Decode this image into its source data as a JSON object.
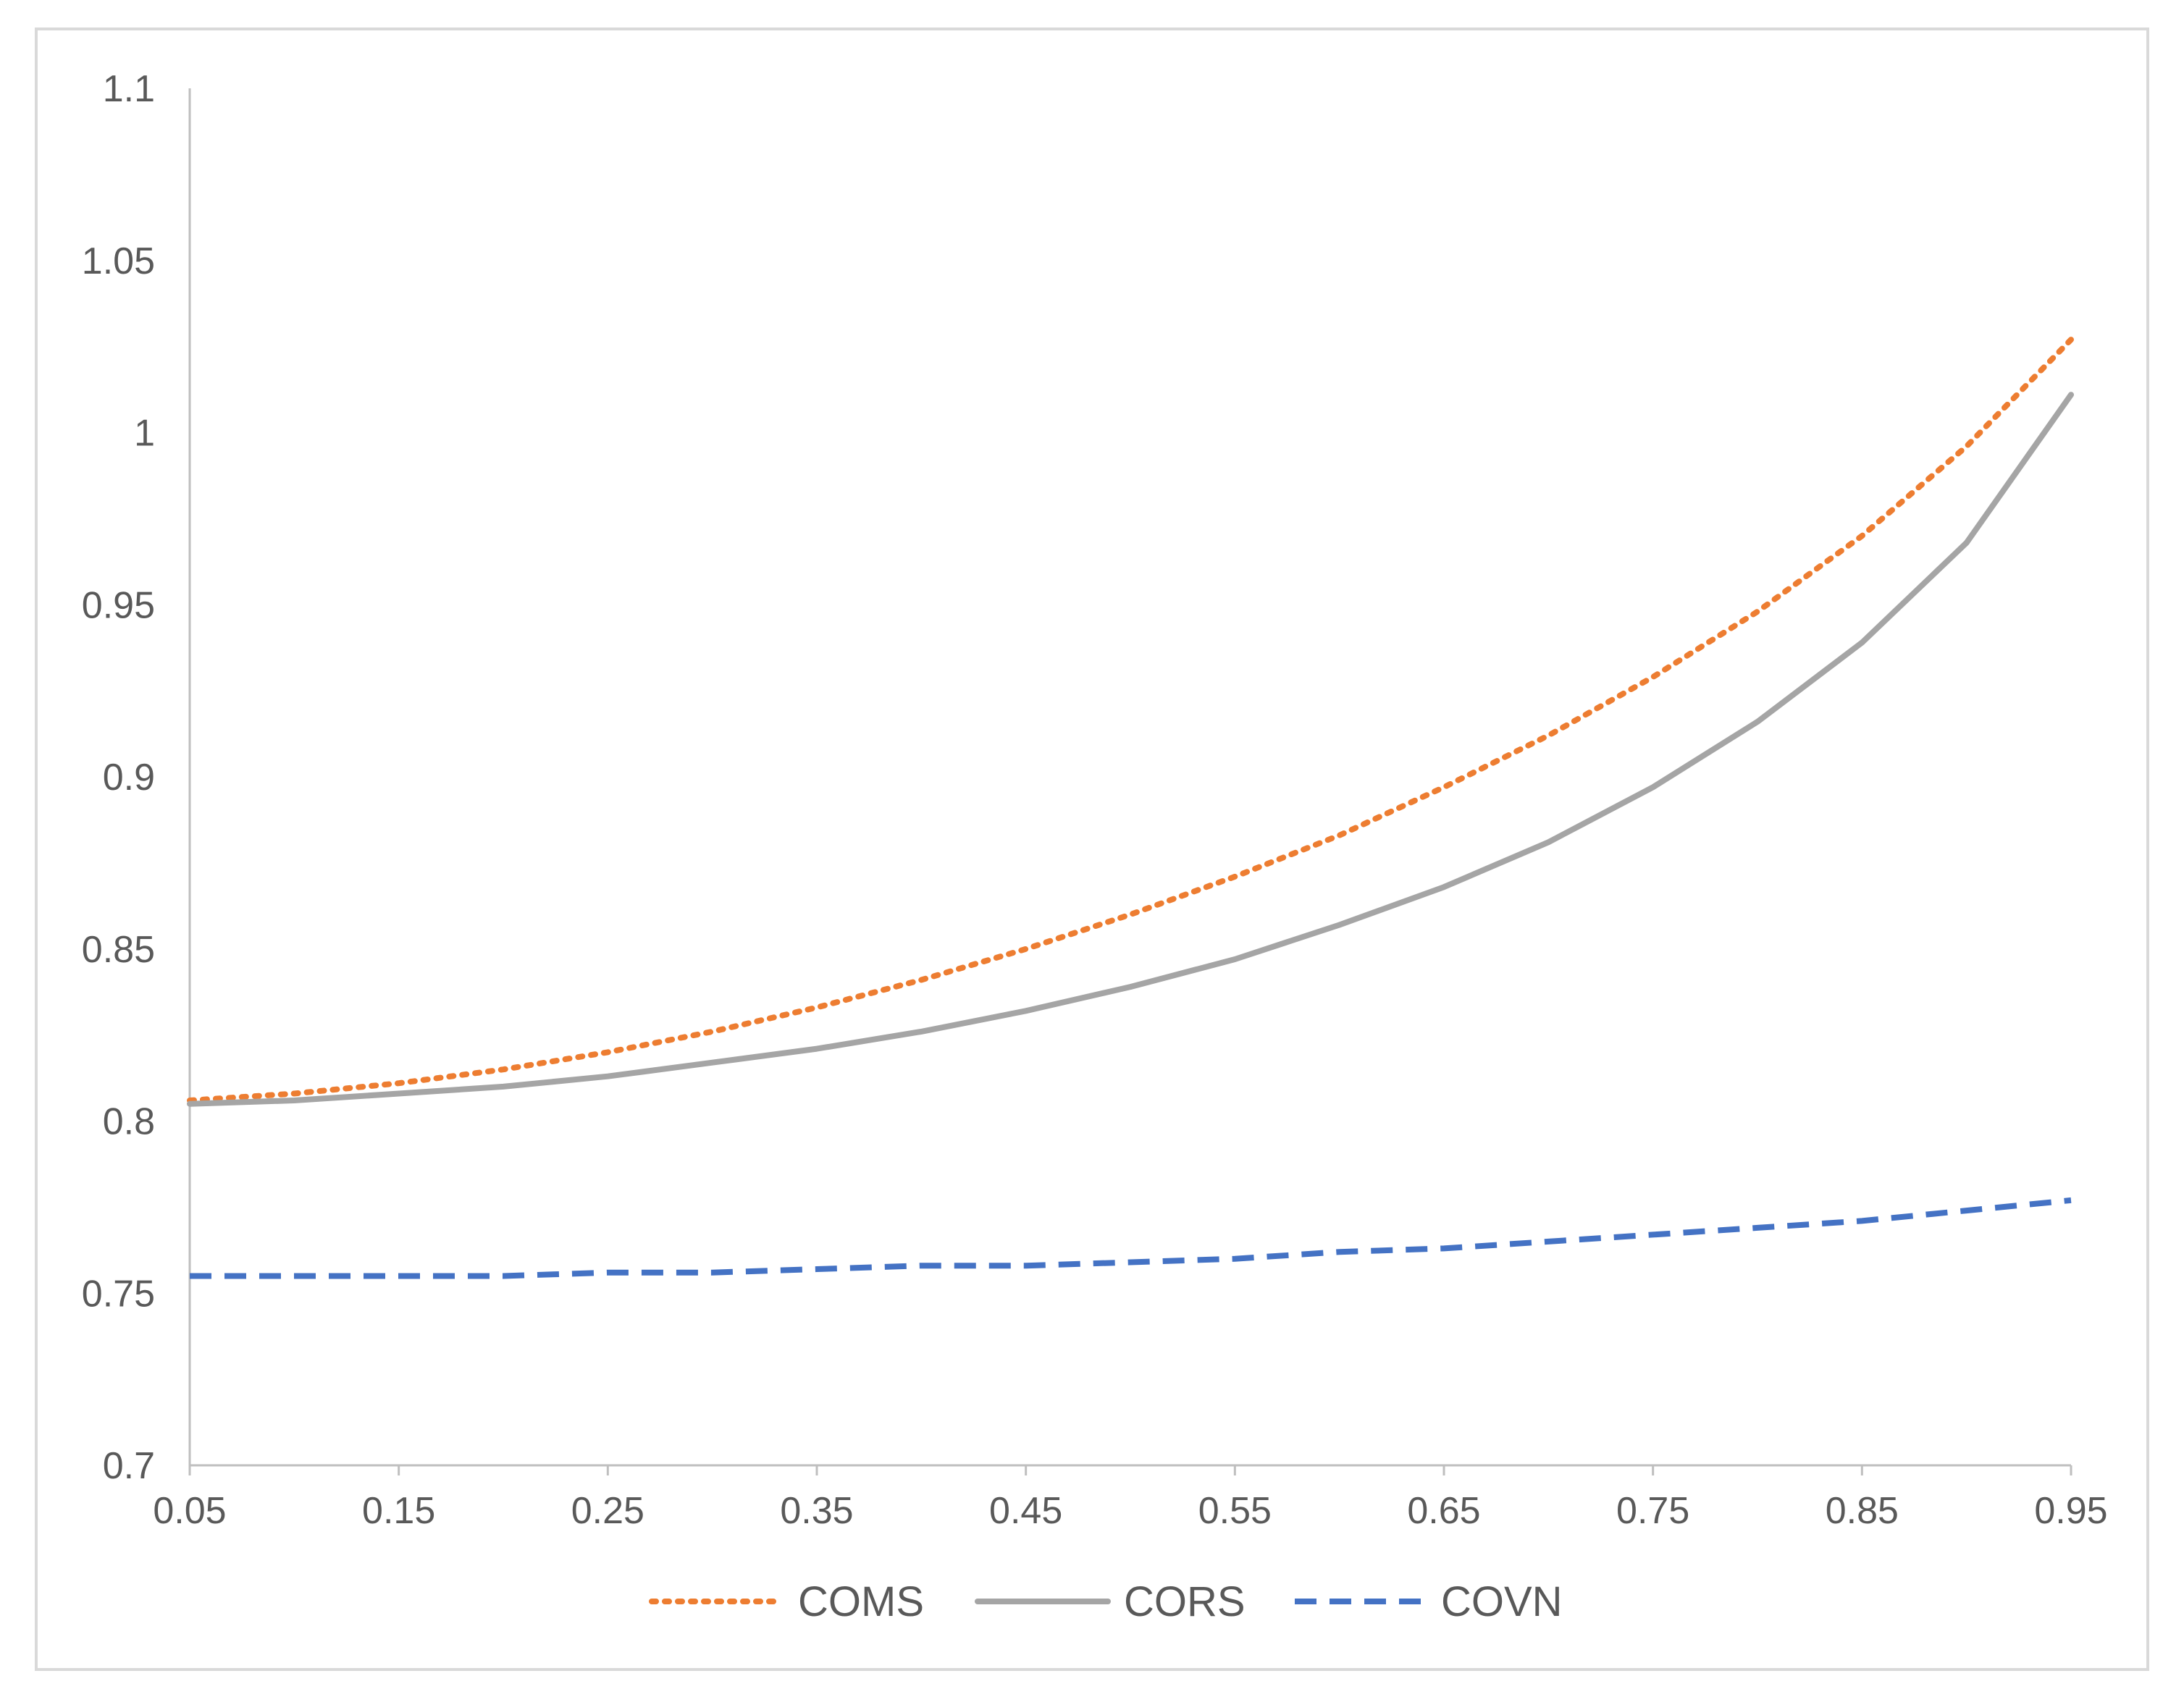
{
  "chart_data": {
    "type": "line",
    "title": "",
    "xlabel": "",
    "ylabel": "",
    "x": [
      0.05,
      0.1,
      0.15,
      0.2,
      0.25,
      0.3,
      0.35,
      0.4,
      0.45,
      0.5,
      0.55,
      0.6,
      0.65,
      0.7,
      0.75,
      0.8,
      0.85,
      0.9,
      0.95
    ],
    "xticks": [
      "0.05",
      "0.15",
      "0.25",
      "0.35",
      "0.45",
      "0.55",
      "0.65",
      "0.75",
      "0.85",
      "0.95"
    ],
    "xtick_values": [
      0.05,
      0.15,
      0.25,
      0.35,
      0.45,
      0.55,
      0.65,
      0.75,
      0.85,
      0.95
    ],
    "xlim": [
      0.05,
      0.95
    ],
    "yticks": [
      "0.7",
      "0.75",
      "0.8",
      "0.85",
      "0.9",
      "0.95",
      "1",
      "1.05",
      "1.1"
    ],
    "ytick_values": [
      0.7,
      0.75,
      0.8,
      0.85,
      0.9,
      0.95,
      1.0,
      1.05,
      1.1
    ],
    "ylim": [
      0.7,
      1.1
    ],
    "grid": false,
    "legend_position": "bottom",
    "series": [
      {
        "name": "COMS",
        "color": "#ED7D31",
        "style": "dotted",
        "values": [
          0.806,
          0.808,
          0.811,
          0.815,
          0.82,
          0.826,
          0.833,
          0.841,
          0.85,
          0.86,
          0.871,
          0.883,
          0.897,
          0.912,
          0.929,
          0.948,
          0.97,
          0.996,
          1.027
        ]
      },
      {
        "name": "CORS",
        "color": "#A5A5A5",
        "style": "solid",
        "values": [
          0.805,
          0.806,
          0.808,
          0.81,
          0.813,
          0.817,
          0.821,
          0.826,
          0.832,
          0.839,
          0.847,
          0.857,
          0.868,
          0.881,
          0.897,
          0.916,
          0.939,
          0.968,
          1.011
        ]
      },
      {
        "name": "COVN",
        "color": "#4472C4",
        "style": "dashed",
        "values": [
          0.755,
          0.755,
          0.755,
          0.755,
          0.756,
          0.756,
          0.757,
          0.758,
          0.758,
          0.759,
          0.76,
          0.762,
          0.763,
          0.765,
          0.767,
          0.769,
          0.771,
          0.774,
          0.777
        ]
      }
    ]
  }
}
